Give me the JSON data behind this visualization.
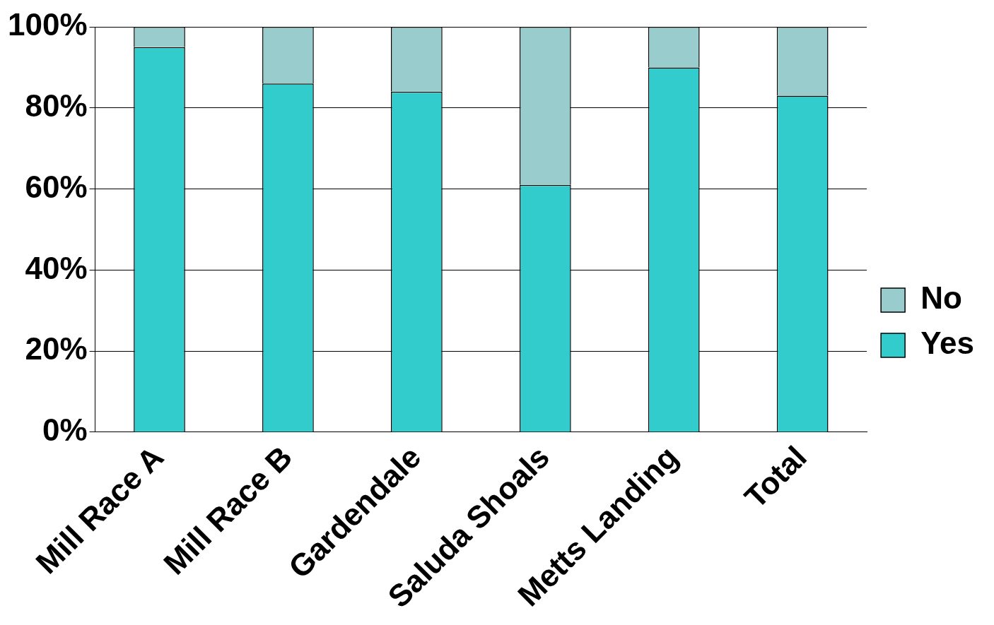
{
  "chart_data": {
    "type": "bar",
    "stacked": true,
    "categories": [
      "Mill Race A",
      "Mill Race B",
      "Gardendale",
      "Saluda Shoals",
      "Metts Landing",
      "Total"
    ],
    "series": [
      {
        "name": "Yes",
        "color": "#33cccc",
        "values": [
          95,
          86,
          84,
          61,
          90,
          83
        ]
      },
      {
        "name": "No",
        "color": "#99cccc",
        "values": [
          5,
          14,
          16,
          39,
          10,
          17
        ]
      }
    ],
    "ylim": [
      0,
      100
    ],
    "yticks": [
      {
        "value": 0,
        "label": "0%"
      },
      {
        "value": 20,
        "label": "20%"
      },
      {
        "value": 40,
        "label": "40%"
      },
      {
        "value": 60,
        "label": "60%"
      },
      {
        "value": 80,
        "label": "80%"
      },
      {
        "value": 100,
        "label": "100%"
      }
    ],
    "grid": "y",
    "legend": "right"
  }
}
